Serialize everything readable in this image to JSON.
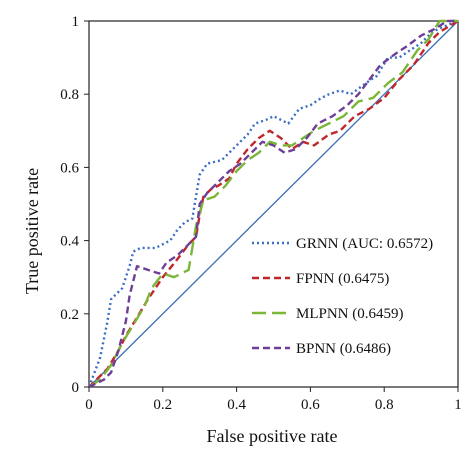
{
  "chart_data": {
    "type": "line",
    "xlabel": "False positive rate",
    "ylabel": "True positive rate",
    "xlim": [
      0,
      1
    ],
    "ylim": [
      0,
      1
    ],
    "x_ticks": [
      "0",
      "0.2",
      "0.4",
      "0.6",
      "0.8",
      "1"
    ],
    "y_ticks": [
      "0",
      "0.2",
      "0.4",
      "0.6",
      "0.8",
      "1"
    ],
    "legend_position": "bottom-right",
    "grid": false,
    "diagonal_color": "#3a6fb5",
    "series": [
      {
        "name": "GRNN (AUC: 0.6572)",
        "color": "#3a6ec4",
        "dash": "dotted",
        "x": [
          0,
          0.03,
          0.05,
          0.06,
          0.07,
          0.09,
          0.11,
          0.12,
          0.14,
          0.18,
          0.22,
          0.24,
          0.26,
          0.28,
          0.29,
          0.3,
          0.32,
          0.36,
          0.4,
          0.43,
          0.45,
          0.48,
          0.5,
          0.54,
          0.57,
          0.6,
          0.63,
          0.65,
          0.68,
          0.71,
          0.75,
          0.78,
          0.81,
          0.84,
          0.87,
          0.9,
          0.93,
          0.95,
          1.0
        ],
        "y": [
          0,
          0.08,
          0.18,
          0.24,
          0.25,
          0.27,
          0.33,
          0.37,
          0.38,
          0.38,
          0.4,
          0.43,
          0.45,
          0.46,
          0.52,
          0.58,
          0.61,
          0.62,
          0.66,
          0.69,
          0.72,
          0.73,
          0.74,
          0.72,
          0.76,
          0.77,
          0.79,
          0.8,
          0.81,
          0.8,
          0.83,
          0.85,
          0.9,
          0.9,
          0.92,
          0.94,
          0.97,
          0.98,
          1.0
        ]
      },
      {
        "name": "FPNN (0.6475)",
        "color": "#c0272d",
        "dash": "dashed",
        "x": [
          0,
          0.02,
          0.05,
          0.08,
          0.1,
          0.13,
          0.16,
          0.2,
          0.24,
          0.27,
          0.29,
          0.3,
          0.31,
          0.33,
          0.35,
          0.38,
          0.4,
          0.43,
          0.46,
          0.49,
          0.52,
          0.55,
          0.58,
          0.61,
          0.65,
          0.68,
          0.72,
          0.76,
          0.8,
          0.84,
          0.88,
          0.92,
          0.95,
          1.0
        ],
        "y": [
          0,
          0.02,
          0.05,
          0.1,
          0.14,
          0.19,
          0.24,
          0.3,
          0.35,
          0.39,
          0.41,
          0.47,
          0.52,
          0.54,
          0.55,
          0.57,
          0.61,
          0.65,
          0.68,
          0.7,
          0.68,
          0.65,
          0.67,
          0.66,
          0.69,
          0.7,
          0.74,
          0.76,
          0.79,
          0.84,
          0.88,
          0.94,
          0.97,
          1.0
        ]
      },
      {
        "name": "MLPNN (0.6459)",
        "color": "#7ab637",
        "dash": "longdash",
        "x": [
          0,
          0.03,
          0.06,
          0.09,
          0.12,
          0.15,
          0.17,
          0.2,
          0.23,
          0.27,
          0.29,
          0.31,
          0.34,
          0.37,
          0.4,
          0.43,
          0.46,
          0.49,
          0.52,
          0.55,
          0.58,
          0.61,
          0.65,
          0.69,
          0.73,
          0.77,
          0.81,
          0.85,
          0.89,
          0.92,
          0.95,
          1.0
        ],
        "y": [
          0,
          0.02,
          0.06,
          0.12,
          0.17,
          0.22,
          0.27,
          0.31,
          0.3,
          0.32,
          0.44,
          0.51,
          0.52,
          0.55,
          0.59,
          0.62,
          0.64,
          0.67,
          0.66,
          0.66,
          0.68,
          0.7,
          0.72,
          0.74,
          0.78,
          0.79,
          0.83,
          0.86,
          0.92,
          0.95,
          1.0,
          1.0
        ]
      },
      {
        "name": "BPNN (0.6486)",
        "color": "#6d3f98",
        "dash": "dashed",
        "x": [
          0,
          0.02,
          0.04,
          0.06,
          0.08,
          0.1,
          0.11,
          0.13,
          0.16,
          0.19,
          0.21,
          0.24,
          0.27,
          0.29,
          0.3,
          0.32,
          0.35,
          0.38,
          0.41,
          0.44,
          0.47,
          0.5,
          0.53,
          0.56,
          0.59,
          0.62,
          0.66,
          0.7,
          0.73,
          0.76,
          0.79,
          0.83,
          0.86,
          0.9,
          0.94,
          0.97,
          1.0
        ],
        "y": [
          0,
          0.01,
          0.02,
          0.04,
          0.1,
          0.18,
          0.25,
          0.33,
          0.32,
          0.31,
          0.34,
          0.36,
          0.39,
          0.41,
          0.5,
          0.53,
          0.56,
          0.59,
          0.61,
          0.64,
          0.67,
          0.66,
          0.64,
          0.65,
          0.68,
          0.72,
          0.74,
          0.77,
          0.8,
          0.84,
          0.88,
          0.91,
          0.93,
          0.96,
          0.98,
          1.0,
          1.0
        ]
      }
    ]
  }
}
